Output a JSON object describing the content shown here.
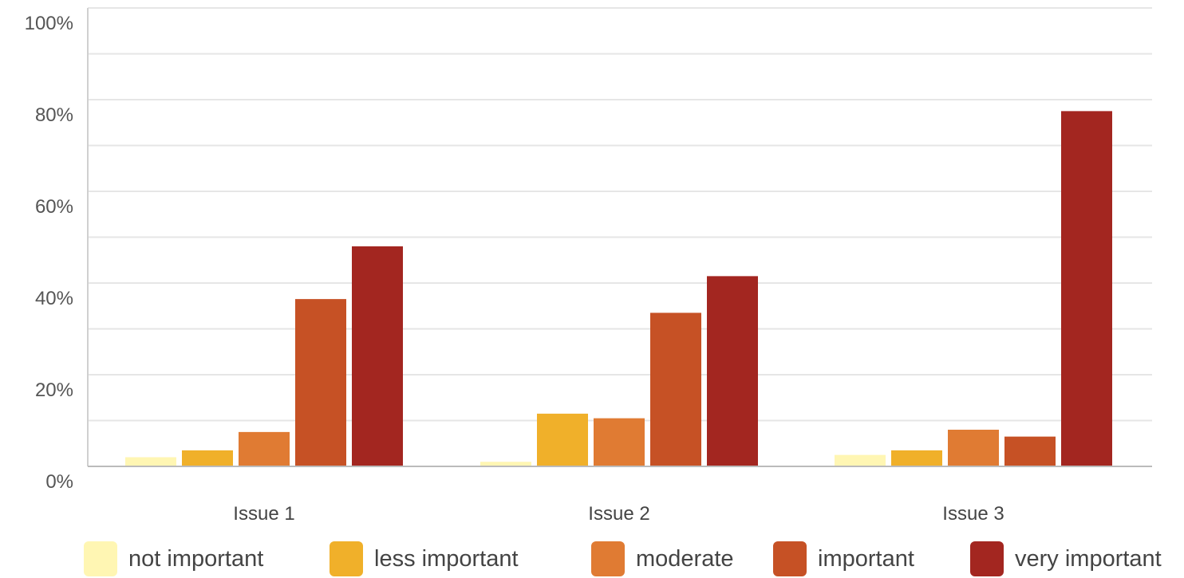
{
  "chart_data": {
    "type": "bar",
    "categories": [
      "Issue 1",
      "Issue 2",
      "Issue 3"
    ],
    "series": [
      {
        "name": "not important",
        "color": "#fff6b3",
        "values": [
          2,
          1,
          2.5
        ]
      },
      {
        "name": "less important",
        "color": "#f0b02a",
        "values": [
          3.5,
          11.5,
          3.5
        ]
      },
      {
        "name": "moderate",
        "color": "#e07b33",
        "values": [
          7.5,
          10.5,
          8
        ]
      },
      {
        "name": "important",
        "color": "#c65125",
        "values": [
          36.5,
          33.5,
          6.5
        ]
      },
      {
        "name": "very important",
        "color": "#a32620",
        "values": [
          48,
          41.5,
          77.5
        ]
      }
    ],
    "ylim": [
      0,
      100
    ],
    "yticks": [
      "0%",
      "20%",
      "40%",
      "60%",
      "80%",
      "100%"
    ],
    "grid": true,
    "legend_position": "bottom"
  }
}
